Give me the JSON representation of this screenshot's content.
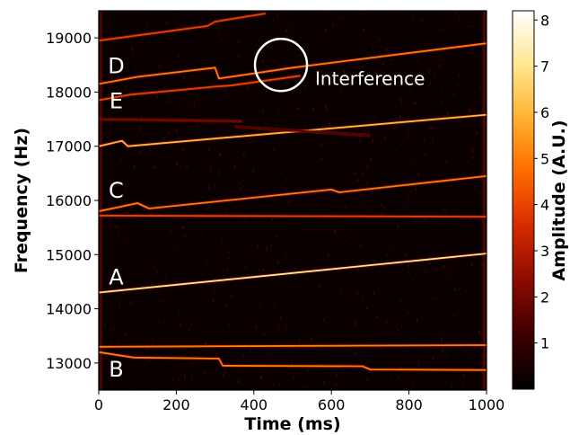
{
  "chart_data": {
    "type": "heatmap",
    "title": "",
    "xlabel": "Time (ms)",
    "ylabel": "Frequency (Hz)",
    "colorbar_label": "Amplitude (A.U.)",
    "xlim": [
      0,
      1000
    ],
    "ylim": [
      12500,
      19500
    ],
    "colorbar_range": [
      0,
      8.2
    ],
    "x_ticks": [
      0,
      200,
      400,
      600,
      800,
      1000
    ],
    "y_ticks": [
      13000,
      14000,
      15000,
      16000,
      17000,
      18000,
      19000
    ],
    "colorbar_ticks": [
      1,
      2,
      3,
      4,
      5,
      6,
      7,
      8
    ],
    "colormap": [
      "#000000",
      "#3c0000",
      "#8c0a00",
      "#d42a00",
      "#ff6a00",
      "#ffb030",
      "#ffe690",
      "#ffffff"
    ],
    "grid": false,
    "background": "#0a0000",
    "traces": [
      {
        "points": [
          [
            0,
            14300
          ],
          [
            1000,
            15020
          ]
        ],
        "amplitude": 7
      },
      {
        "points": [
          [
            0,
            15720
          ],
          [
            1000,
            15700
          ]
        ],
        "amplitude": 4
      },
      {
        "points": [
          [
            0,
            15800
          ],
          [
            100,
            15950
          ],
          [
            130,
            15850
          ],
          [
            600,
            16200
          ],
          [
            620,
            16150
          ],
          [
            1000,
            16450
          ]
        ],
        "amplitude": 5
      },
      {
        "points": [
          [
            0,
            17000
          ],
          [
            60,
            17100
          ],
          [
            75,
            17000
          ],
          [
            1000,
            17580
          ]
        ],
        "amplitude": 6
      },
      {
        "points": [
          [
            0,
            17500
          ],
          [
            370,
            17460
          ]
        ],
        "amplitude": 2
      },
      {
        "points": [
          [
            350,
            17360
          ],
          [
            700,
            17200
          ]
        ],
        "amplitude": 1.5
      },
      {
        "points": [
          [
            0,
            17850
          ],
          [
            80,
            17950
          ],
          [
            300,
            18100
          ],
          [
            340,
            18120
          ],
          [
            520,
            18300
          ]
        ],
        "amplitude": 4
      },
      {
        "points": [
          [
            0,
            18150
          ],
          [
            100,
            18280
          ],
          [
            300,
            18450
          ],
          [
            310,
            18250
          ],
          [
            500,
            18450
          ],
          [
            1000,
            18900
          ]
        ],
        "amplitude": 5
      },
      {
        "points": [
          [
            0,
            18950
          ],
          [
            280,
            19220
          ],
          [
            300,
            19300
          ],
          [
            430,
            19450
          ]
        ],
        "amplitude": 4
      },
      {
        "points": [
          [
            0,
            13300
          ],
          [
            1000,
            13330
          ]
        ],
        "amplitude": 5
      },
      {
        "points": [
          [
            0,
            13200
          ],
          [
            90,
            13100
          ],
          [
            310,
            13080
          ],
          [
            320,
            12950
          ],
          [
            680,
            12940
          ],
          [
            700,
            12880
          ],
          [
            1000,
            12870
          ]
        ],
        "amplitude": 5
      }
    ],
    "trace_labels": [
      {
        "text": "D",
        "x": 45,
        "y": 18500
      },
      {
        "text": "E",
        "x": 45,
        "y": 17850
      },
      {
        "text": "C",
        "x": 45,
        "y": 16200
      },
      {
        "text": "A",
        "x": 45,
        "y": 14600
      },
      {
        "text": "B",
        "x": 45,
        "y": 12900
      }
    ],
    "annotation": {
      "text": "Interference",
      "x": 470,
      "y": 18500
    }
  }
}
